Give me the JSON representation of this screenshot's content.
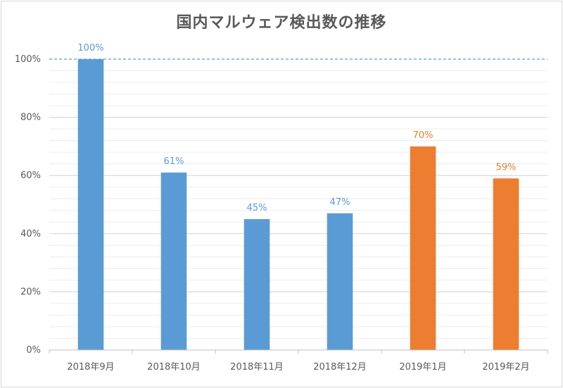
{
  "chart_data": {
    "type": "bar",
    "title": "国内マルウェア検出数の推移",
    "categories": [
      "2018年9月",
      "2018年10月",
      "2018年11月",
      "2018年12月",
      "2019年1月",
      "2019年2月"
    ],
    "values": [
      100,
      61,
      45,
      47,
      70,
      59
    ],
    "data_labels": [
      "100%",
      "61%",
      "45%",
      "47%",
      "70%",
      "59%"
    ],
    "bar_colors": [
      "#5b9bd5",
      "#5b9bd5",
      "#5b9bd5",
      "#5b9bd5",
      "#ed7d31",
      "#ed7d31"
    ],
    "label_colors": [
      "#5b9bd5",
      "#5b9bd5",
      "#5b9bd5",
      "#5b9bd5",
      "#ed7d31",
      "#ed7d31"
    ],
    "ylim": [
      0,
      100
    ],
    "yticks": [
      0,
      20,
      40,
      60,
      80,
      100
    ],
    "ytick_labels": [
      "0%",
      "20%",
      "40%",
      "60%",
      "80%",
      "100%"
    ],
    "minor_step": 4,
    "reference_line": {
      "value": 100,
      "color": "#5b9bd5",
      "style": "dashed"
    },
    "grid_color": "#d9d9d9",
    "xlabel": "",
    "ylabel": ""
  }
}
